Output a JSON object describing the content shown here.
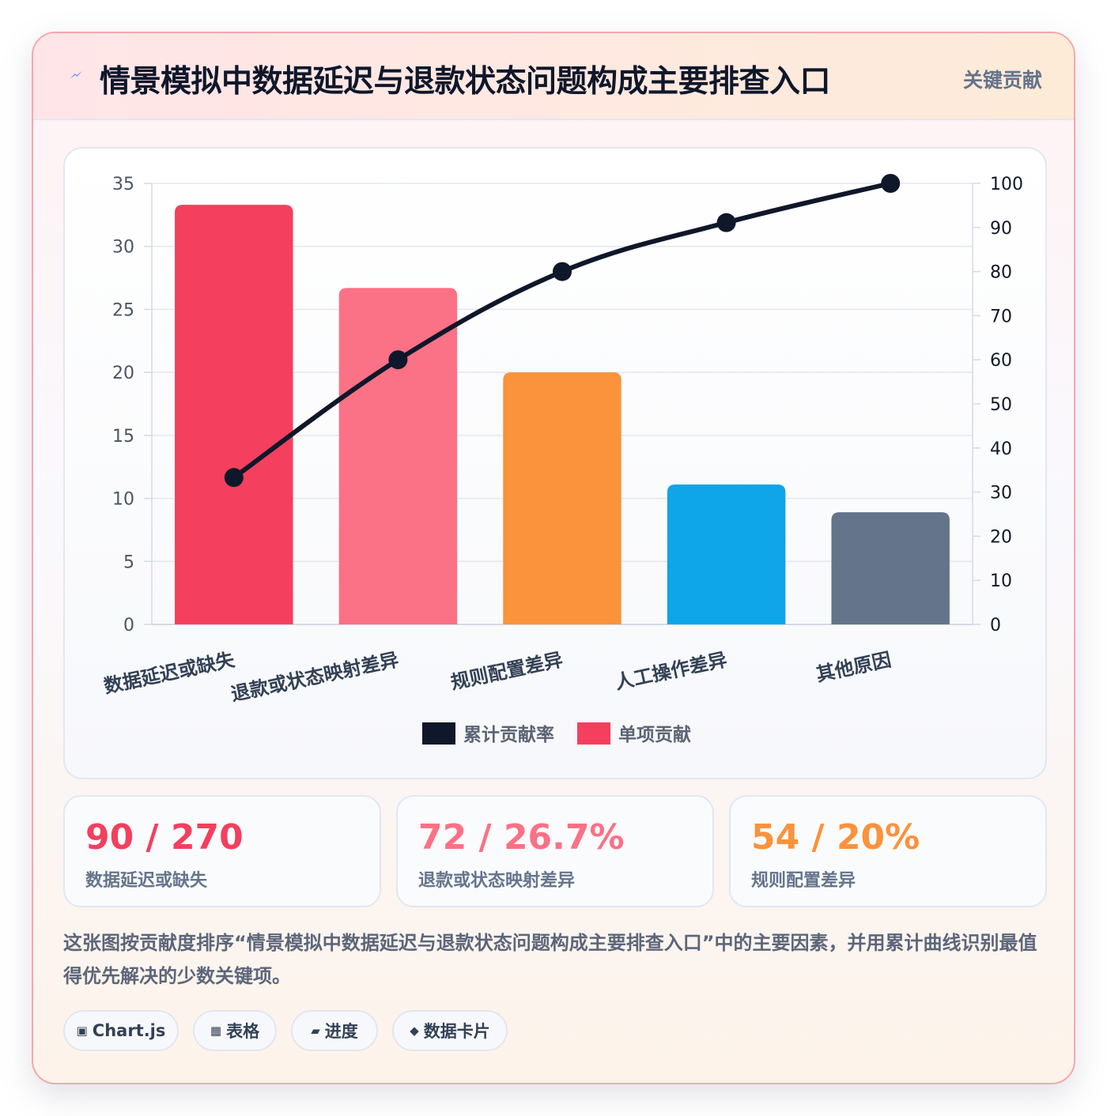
{
  "header": {
    "title": "情景模拟中数据延迟与退款状态问题构成主要排查入口",
    "tag": "关键贡献"
  },
  "chart_data": {
    "type": "bar",
    "categories": [
      "数据延迟或缺失",
      "退款或状态映射差异",
      "规则配置差异",
      "人工操作差异",
      "其他原因"
    ],
    "series": [
      {
        "name": "单项贡献",
        "type": "bar",
        "axis": "left",
        "values": [
          33.3,
          26.7,
          20,
          11.1,
          8.9
        ]
      },
      {
        "name": "累计贡献率",
        "type": "line",
        "axis": "right",
        "values": [
          33.3,
          60,
          80,
          91.1,
          100
        ]
      }
    ],
    "bar_colors": [
      "#f43f5e",
      "#fb7185",
      "#fb923c",
      "#0ea5e9",
      "#64748b"
    ],
    "line_color": "#0f172a",
    "ylim_left": [
      0,
      35
    ],
    "yticks_left": [
      0,
      5,
      10,
      15,
      20,
      25,
      30,
      35
    ],
    "ylim_right": [
      0,
      100
    ],
    "yticks_right": [
      0,
      10,
      20,
      30,
      40,
      50,
      60,
      70,
      80,
      90,
      100
    ],
    "legend": {
      "position": "bottom",
      "items": [
        {
          "label": "累计贡献率",
          "color": "#0f172a"
        },
        {
          "label": "单项贡献",
          "color": "#f43f5e"
        }
      ]
    },
    "grid": true
  },
  "stats": [
    {
      "value": "90 / 270",
      "label": "数据延迟或缺失",
      "color": "#f43f5e"
    },
    {
      "value": "72 / 26.7%",
      "label": "退款或状态映射差异",
      "color": "#fb7185"
    },
    {
      "value": "54 / 20%",
      "label": "规则配置差异",
      "color": "#fb923c"
    }
  ],
  "description": "这张图按贡献度排序“情景模拟中数据延迟与退款状态问题构成主要排查入口”中的主要因素，并用累计曲线识别最值得优先解决的少数关键项。",
  "chips": [
    {
      "icon": "▣",
      "label": "Chart.js"
    },
    {
      "icon": "▦",
      "label": "表格"
    },
    {
      "icon": "▰",
      "label": "进度"
    },
    {
      "icon": "◆",
      "label": "数据卡片"
    }
  ],
  "icons": {
    "title_icon": "lightning-bolt-icon",
    "title_icon_color": "#3b82f6"
  }
}
